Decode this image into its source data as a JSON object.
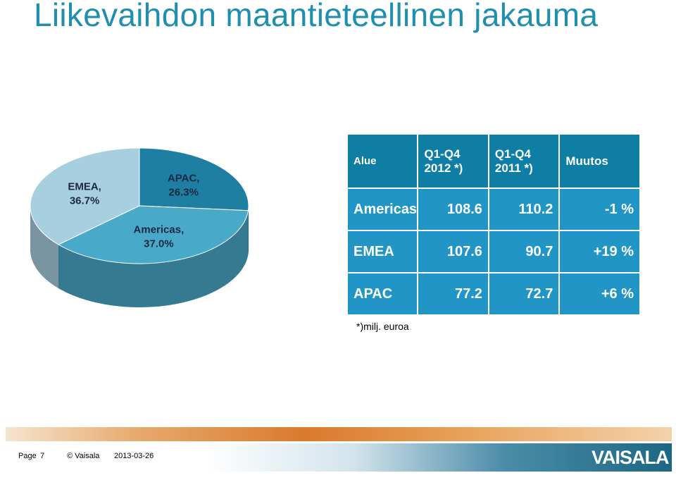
{
  "title": "Liikevaihdon maantieteellinen jakauma",
  "chart_data": {
    "type": "pie",
    "title": "",
    "slices": [
      {
        "name": "APAC",
        "value": 26.3,
        "color": "#1f7fa3",
        "label": "APAC,",
        "pct_label": "26.3%"
      },
      {
        "name": "Americas",
        "value": 37.0,
        "color": "#49a9c8",
        "label": "Americas,",
        "pct_label": "37.0%"
      },
      {
        "name": "EMEA",
        "value": 36.7,
        "color": "#a8cfe0",
        "label": "EMEA,",
        "pct_label": "36.7%"
      }
    ]
  },
  "table": {
    "headers": [
      "Alue",
      "Q1-Q4 2012 *)",
      "Q1-Q4 2011 *)",
      "Muutos"
    ],
    "rows": [
      [
        "Americas",
        "108.6",
        "110.2",
        "-1 %"
      ],
      [
        "EMEA",
        "107.6",
        "90.7",
        "+19 %"
      ],
      [
        "APAC",
        "77.2",
        "72.7",
        "+6 %"
      ]
    ]
  },
  "note": "*)milj. euroa",
  "footer": {
    "page": "Page",
    "page_number": "7",
    "copyright": "© Vaisala",
    "date": "2013-03-26",
    "logo": "VAISALA"
  },
  "colors": {
    "title": "#1f8fb0",
    "table_header": "#0e7ea4",
    "table_body": "#2196c6"
  }
}
